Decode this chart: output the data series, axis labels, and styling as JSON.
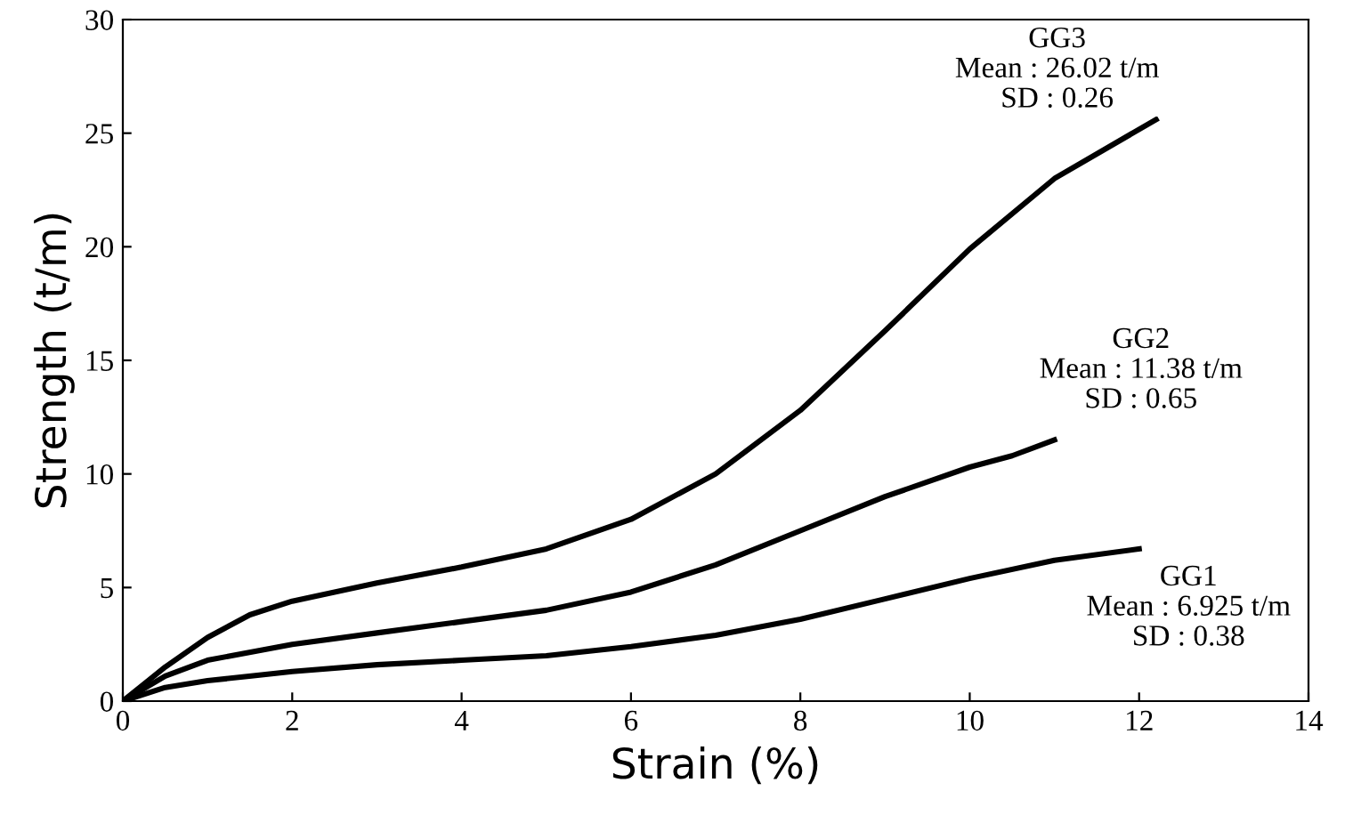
{
  "chart_data": {
    "type": "line",
    "xlabel": "Strain (%)",
    "ylabel": "Strength (t/m)",
    "xlim": [
      0,
      14
    ],
    "ylim": [
      0,
      30
    ],
    "xticks": [
      0,
      2,
      4,
      6,
      8,
      10,
      12,
      14
    ],
    "yticks": [
      0,
      5,
      10,
      15,
      20,
      25,
      30
    ],
    "grid": false,
    "legend": false,
    "marker": "none",
    "line_style": "solid",
    "series": [
      {
        "color": "#000000",
        "x": [
          0,
          0.5,
          1,
          2,
          3,
          4,
          5,
          6,
          7,
          8,
          9,
          10,
          11,
          12
        ],
        "values": [
          0,
          0.6,
          0.9,
          1.3,
          1.6,
          1.8,
          2.0,
          2.4,
          2.9,
          3.6,
          4.5,
          5.4,
          6.2,
          6.7
        ]
      },
      {
        "color": "#000000",
        "x": [
          0,
          0.5,
          1,
          2,
          3,
          4,
          5,
          6,
          7,
          8,
          9,
          10,
          10.5,
          11
        ],
        "values": [
          0,
          1.1,
          1.8,
          2.5,
          3.0,
          3.5,
          4.0,
          4.8,
          6.0,
          7.5,
          9.0,
          10.3,
          10.8,
          11.5
        ]
      },
      {
        "color": "#000000",
        "x": [
          0,
          0.5,
          1,
          1.5,
          2,
          3,
          4,
          5,
          6,
          7,
          8,
          9,
          10,
          11,
          12.2
        ],
        "values": [
          0,
          1.5,
          2.8,
          3.8,
          4.4,
          5.2,
          5.9,
          6.7,
          8.0,
          10.0,
          12.8,
          16.3,
          19.9,
          23.0,
          25.6
        ]
      }
    ],
    "annotations": [
      {
        "text": "GG1\nMean : 6.925 t/m\nSD : 0.38",
        "x": 12,
        "y": 6.7
      },
      {
        "text": "GG2\nMean : 11.38 t/m\nSD : 0.65",
        "x": 11,
        "y": 11.5
      },
      {
        "text": "GG3\nMean : 26.02 t/m\nSD : 0.26",
        "x": 12.2,
        "y": 25.6
      }
    ]
  }
}
